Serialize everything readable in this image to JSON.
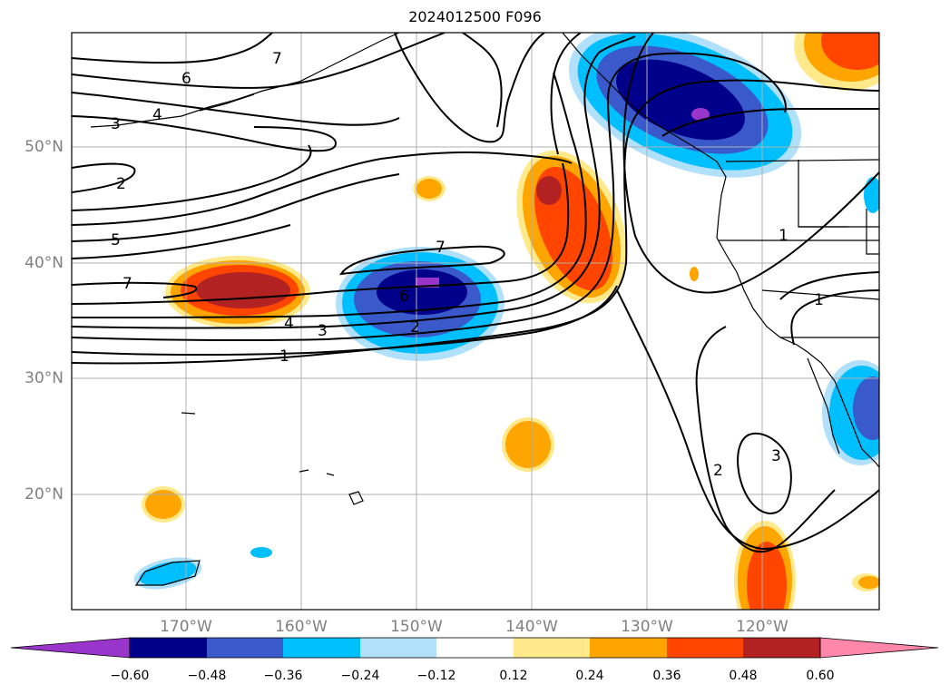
{
  "title": "2024012500 F096",
  "lat_labels": [
    "50°N",
    "40°N",
    "30°N",
    "20°N"
  ],
  "lon_labels": [
    "170°W",
    "160°W",
    "150°W",
    "140°W",
    "130°W",
    "120°W"
  ],
  "contour_labels": [
    "7",
    "6",
    "3",
    "4",
    "2",
    "5",
    "7",
    "7",
    "6",
    "4",
    "3",
    "2",
    "1",
    "1",
    "1",
    "2",
    "3"
  ],
  "colorbar": {
    "ticks": [
      "−0.60",
      "−0.48",
      "−0.36",
      "−0.24",
      "−0.12",
      "0.12",
      "0.24",
      "0.36",
      "0.48",
      "0.60"
    ],
    "colors": [
      "#9a35cc",
      "#00008b",
      "#3a5acc",
      "#00bfff",
      "#b0e0fa",
      "#ffffff",
      "#ffe98a",
      "#ffa500",
      "#ff4500",
      "#b22222",
      "#ff88aa"
    ]
  },
  "colors": {
    "purple": "#9a35cc",
    "navy": "#00008b",
    "royal": "#3a5acc",
    "sky": "#00bfff",
    "lightblue": "#b0e0fa",
    "lightyellow": "#ffe98a",
    "orange": "#ffa500",
    "redorange": "#ff4500",
    "firebrick": "#b22222",
    "grid": "#b0b0b0"
  }
}
